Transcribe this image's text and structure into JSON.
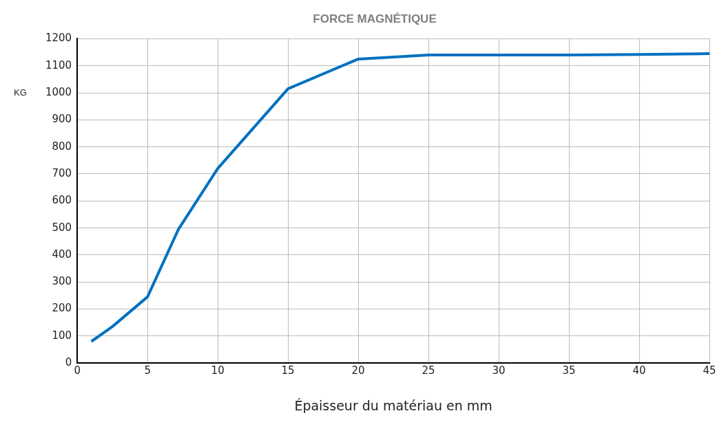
{
  "chart_data": {
    "type": "line",
    "title": "FORCE MAGNÉTIQUE",
    "xlabel": "Épaisseur du matériau en mm",
    "ylabel": "KG",
    "x": [
      1,
      2.5,
      5,
      7.2,
      10,
      15,
      20,
      25,
      30,
      35,
      40,
      45
    ],
    "series": [
      {
        "color": "#0070c0",
        "values": [
          80,
          135,
          245,
          495,
          720,
          1015,
          1125,
          1140,
          1140,
          1140,
          1142,
          1145
        ]
      }
    ],
    "xlim": [
      0,
      45
    ],
    "xticks": [
      0,
      5,
      10,
      15,
      20,
      25,
      30,
      35,
      40,
      45
    ],
    "ylim": [
      0,
      1200
    ],
    "yticks": [
      0,
      100,
      200,
      300,
      400,
      500,
      600,
      700,
      800,
      900,
      1000,
      1100,
      1200
    ],
    "grid": true,
    "legend": false,
    "marker": "none",
    "line_style": "solid"
  }
}
